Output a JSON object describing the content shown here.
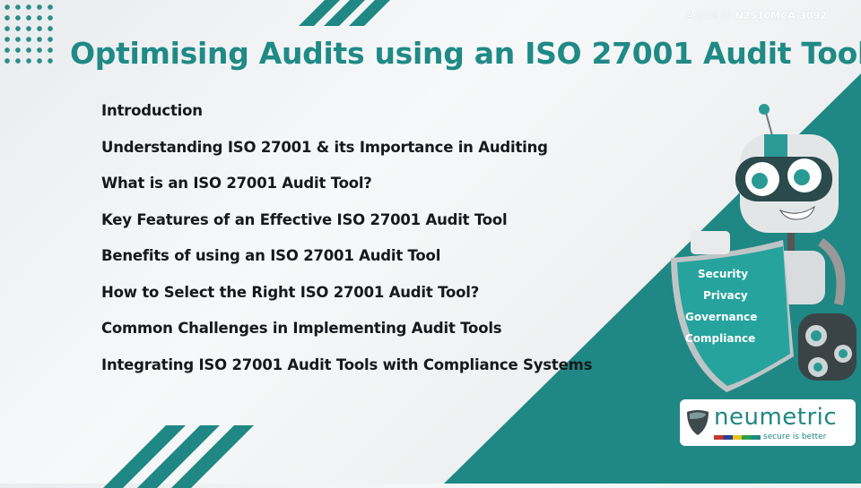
{
  "article_id": {
    "label": "Article ID",
    "value": "N2510MCA-3092"
  },
  "title": "Optimising Audits using an ISO 27001 Audit Tool",
  "agenda": [
    "Introduction",
    "Understanding ISO 27001 & its Importance in Auditing",
    "What is an ISO 27001 Audit Tool?",
    "Key Features of an Effective ISO 27001 Audit Tool",
    "Benefits of using an ISO 27001 Audit Tool",
    "How to Select the Right ISO 27001 Audit Tool?",
    "Common Challenges in Implementing Audit Tools",
    "Integrating ISO 27001 Audit Tools with Compliance Systems"
  ],
  "shield_words": [
    "Security",
    "Privacy",
    "Governance",
    "Compliance"
  ],
  "logo": {
    "name": "neumetric",
    "tagline": "secure is better"
  },
  "colors": {
    "accent": "#1f8784",
    "title": "#1f8a86",
    "text": "#16191c"
  }
}
